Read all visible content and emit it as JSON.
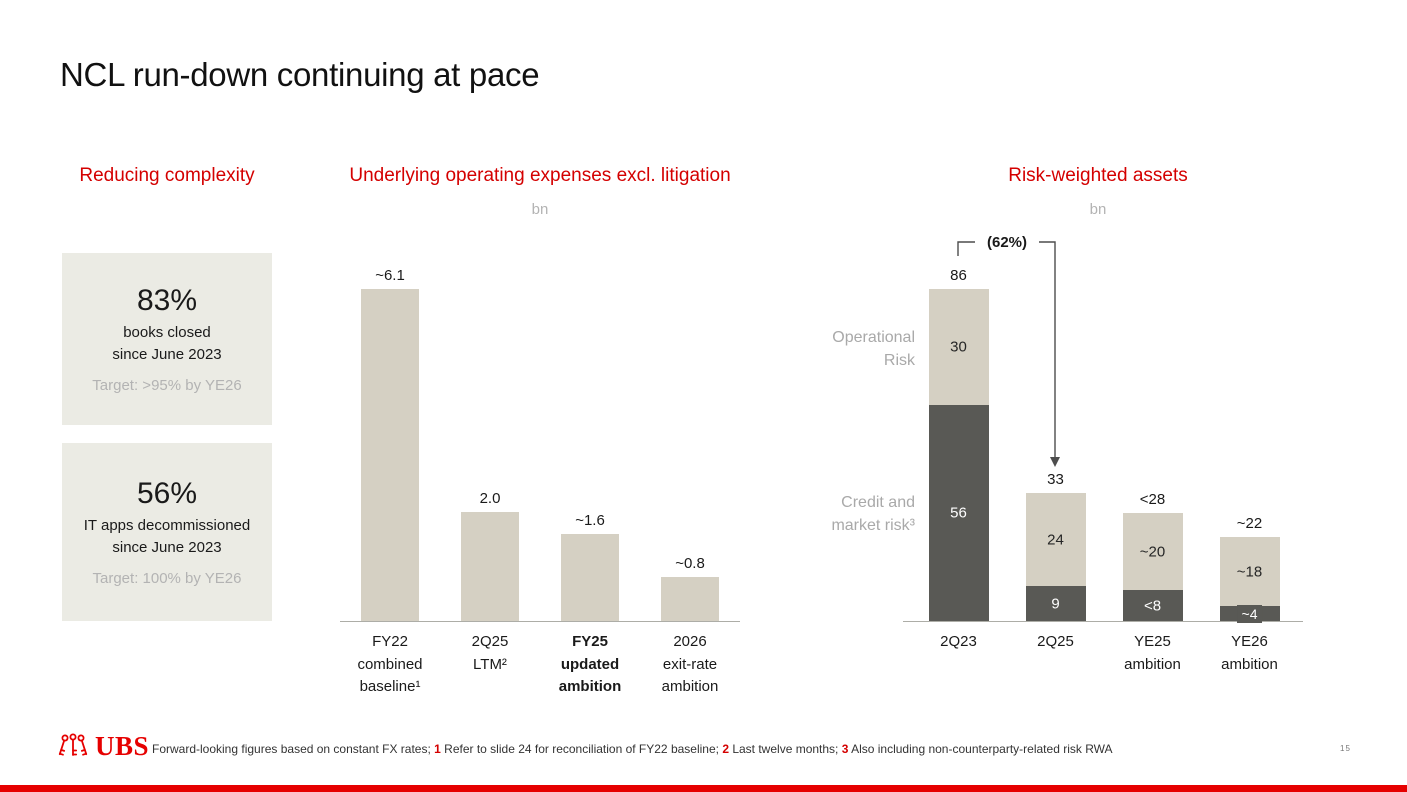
{
  "slide": {
    "title": "NCL run-down continuing at pace",
    "page_number": "15"
  },
  "colors": {
    "ubs_red": "#e60000",
    "header_red": "#d40000",
    "bar_beige": "#d5d0c3",
    "bar_dark": "#595955",
    "stat_box_bg": "#ebebe4",
    "muted_gray": "#a9a9a9"
  },
  "left_panel": {
    "header": "Reducing complexity",
    "stats": [
      {
        "value": "83%",
        "line1": "books closed",
        "line2": "since June 2023",
        "target": "Target: >95% by YE26"
      },
      {
        "value": "56%",
        "line1": "IT apps decommissioned",
        "line2": "since June 2023",
        "target": "Target: 100% by YE26"
      }
    ]
  },
  "chart_data": [
    {
      "type": "bar",
      "title": "Underlying operating expenses excl. litigation",
      "unit": "bn",
      "categories": [
        [
          "FY22",
          "combined",
          "baseline¹"
        ],
        [
          "2Q25",
          "LTM²"
        ],
        [
          "FY25",
          "updated",
          "ambition"
        ],
        [
          "2026",
          "exit-rate",
          "ambition"
        ]
      ],
      "values": [
        6.1,
        2.0,
        1.6,
        0.8
      ],
      "value_labels": [
        "~6.1",
        "2.0",
        "~1.6",
        "~0.8"
      ],
      "bold_category_index": 2,
      "ylim": [
        0,
        6.5
      ],
      "grid": false,
      "legend": false
    },
    {
      "type": "stacked-bar",
      "title": "Risk-weighted assets",
      "unit": "bn",
      "categories": [
        [
          "2Q23"
        ],
        [
          "2Q25"
        ],
        [
          "YE25",
          "ambition"
        ],
        [
          "YE26",
          "ambition"
        ]
      ],
      "series": [
        {
          "name": "Credit and market risk³",
          "values": [
            56,
            9,
            8,
            4
          ],
          "labels": [
            "56",
            "9",
            "<8",
            "~4"
          ],
          "color_key": "dark"
        },
        {
          "name": "Operational Risk",
          "values": [
            30,
            24,
            20,
            18
          ],
          "labels": [
            "30",
            "24",
            "~20",
            "~18"
          ],
          "color_key": "beige"
        }
      ],
      "totals": [
        86,
        33,
        28,
        22
      ],
      "total_labels": [
        "86",
        "33",
        "<28",
        "~22"
      ],
      "annotation": "(62%)",
      "row_labels": [
        {
          "lines": [
            "Operational",
            "Risk"
          ]
        },
        {
          "lines": [
            "Credit and",
            "market risk³"
          ]
        }
      ],
      "ylim": [
        0,
        90
      ],
      "grid": false,
      "legend": false
    }
  ],
  "footer": {
    "logo_text": "UBS",
    "footnote_segments": [
      {
        "text": "Forward-looking figures based on constant FX rates; ",
        "red": false
      },
      {
        "text": "1",
        "red": true
      },
      {
        "text": " Refer to slide 24 for reconciliation of FY22 baseline; ",
        "red": false
      },
      {
        "text": "2",
        "red": true
      },
      {
        "text": " Last twelve months; ",
        "red": false
      },
      {
        "text": "3",
        "red": true
      },
      {
        "text": " Also including non-counterparty-related risk RWA",
        "red": false
      }
    ]
  }
}
